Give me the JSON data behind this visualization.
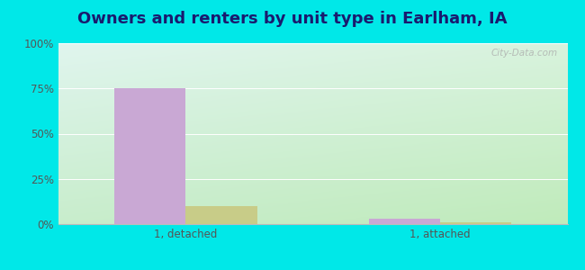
{
  "title": "Owners and renters by unit type in Earlham, IA",
  "categories": [
    "1, detached",
    "1, attached"
  ],
  "owner_values": [
    75,
    3
  ],
  "renter_values": [
    10,
    1
  ],
  "owner_color": "#c9a8d4",
  "renter_color": "#c8cc88",
  "ylim": [
    0,
    100
  ],
  "yticks": [
    0,
    25,
    50,
    75,
    100
  ],
  "ytick_labels": [
    "0%",
    "25%",
    "50%",
    "75%",
    "100%"
  ],
  "outer_bg": "#00e8e8",
  "bar_width": 0.28,
  "title_fontsize": 13,
  "watermark": "City-Data.com"
}
